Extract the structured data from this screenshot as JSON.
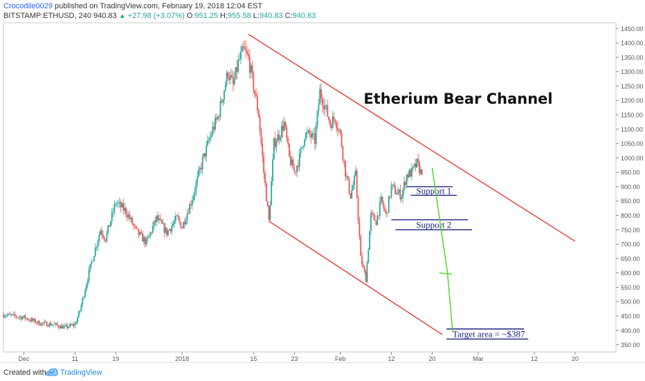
{
  "header": {
    "author": "Crocodile0029",
    "published": " published on TradingView.com, February 19, 2018 12:04 EST",
    "symbol": "BITSTAMP:ETHUSD, 240",
    "price": "940.83",
    "change": "+27.98 (+3.07%)",
    "o_label": "O:",
    "o_val": "951.25",
    "h_label": "H:",
    "h_val": "955.58",
    "l_label": "L:",
    "l_val": "940.83",
    "c_label": "C:",
    "c_val": "940.83"
  },
  "footer": {
    "created_with": "Created with",
    "brand": "TradingView"
  },
  "colors": {
    "bull": "#26a69a",
    "bear": "#ef5350",
    "channel": "#e53935",
    "support": "#1a237e",
    "projection": "#43d81e",
    "annotation_text": "#1a237e"
  },
  "chart_data": {
    "type": "candlestick",
    "title": "Etherium Bear Channel",
    "y_ticks": [
      350,
      400,
      450,
      500,
      550,
      600,
      650,
      700,
      750,
      800,
      850,
      900,
      950,
      1000,
      1050,
      1100,
      1150,
      1200,
      1250,
      1300,
      1350,
      1400,
      1450
    ],
    "ylim": [
      325,
      1470
    ],
    "x_ticks": [
      {
        "label": "Dec",
        "day": 0
      },
      {
        "label": "11",
        "day": 10
      },
      {
        "label": "19",
        "day": 18
      },
      {
        "label": "2018",
        "day": 31
      },
      {
        "label": "15",
        "day": 45
      },
      {
        "label": "23",
        "day": 53
      },
      {
        "label": "Feb",
        "day": 62
      },
      {
        "label": "12",
        "day": 72
      },
      {
        "label": "20",
        "day": 80
      },
      {
        "label": "Mar",
        "day": 89
      },
      {
        "label": "12",
        "day": 100
      },
      {
        "label": "20",
        "day": 108
      }
    ],
    "xlim": [
      -4,
      116
    ],
    "last_day": 78,
    "path": [
      [
        -4,
        455
      ],
      [
        0,
        445
      ],
      [
        3,
        425
      ],
      [
        6,
        420
      ],
      [
        8,
        410
      ],
      [
        10,
        420
      ],
      [
        11,
        470
      ],
      [
        13,
        620
      ],
      [
        15,
        750
      ],
      [
        16,
        720
      ],
      [
        18,
        845
      ],
      [
        20,
        815
      ],
      [
        22,
        745
      ],
      [
        24,
        705
      ],
      [
        26,
        790
      ],
      [
        28,
        740
      ],
      [
        30,
        790
      ],
      [
        31,
        760
      ],
      [
        33,
        860
      ],
      [
        35,
        990
      ],
      [
        37,
        1100
      ],
      [
        38,
        1140
      ],
      [
        40,
        1300
      ],
      [
        41,
        1250
      ],
      [
        42,
        1330
      ],
      [
        43,
        1375
      ],
      [
        44,
        1345
      ],
      [
        45,
        1250
      ],
      [
        46,
        1150
      ],
      [
        47,
        950
      ],
      [
        48,
        780
      ],
      [
        49,
        1050
      ],
      [
        50,
        1080
      ],
      [
        51,
        1120
      ],
      [
        52,
        1000
      ],
      [
        53,
        950
      ],
      [
        54,
        1000
      ],
      [
        55,
        1080
      ],
      [
        56,
        1080
      ],
      [
        57,
        1060
      ],
      [
        58,
        1230
      ],
      [
        59,
        1180
      ],
      [
        60,
        1120
      ],
      [
        61,
        1140
      ],
      [
        62,
        1080
      ],
      [
        63,
        950
      ],
      [
        64,
        870
      ],
      [
        65,
        940
      ],
      [
        66,
        650
      ],
      [
        67,
        580
      ],
      [
        68,
        800
      ],
      [
        69,
        780
      ],
      [
        70,
        850
      ],
      [
        71,
        800
      ],
      [
        72,
        900
      ],
      [
        73,
        880
      ],
      [
        74,
        870
      ],
      [
        75,
        940
      ],
      [
        76,
        950
      ],
      [
        77,
        980
      ],
      [
        78,
        941
      ]
    ],
    "channel_lines": [
      {
        "x1": 44,
        "y1": 1430,
        "x2": 108,
        "y2": 710
      },
      {
        "x1": 48,
        "y1": 780,
        "x2": 82,
        "y2": 385
      }
    ],
    "support_lines": [
      {
        "label": "Support 1",
        "x1": 75,
        "x2": 84,
        "y_top": 900,
        "y_bot": 870
      },
      {
        "label": "Support 2",
        "x1": 72,
        "x2": 87,
        "y_top": 785,
        "y_bot": 750
      }
    ],
    "target": {
      "label": "Target area = ~$387",
      "x1": 82,
      "x2": 98,
      "y_top": 405,
      "y_bot": 370
    },
    "projection": [
      [
        80,
        965
      ],
      [
        83,
        600
      ],
      [
        84,
        395
      ]
    ]
  }
}
